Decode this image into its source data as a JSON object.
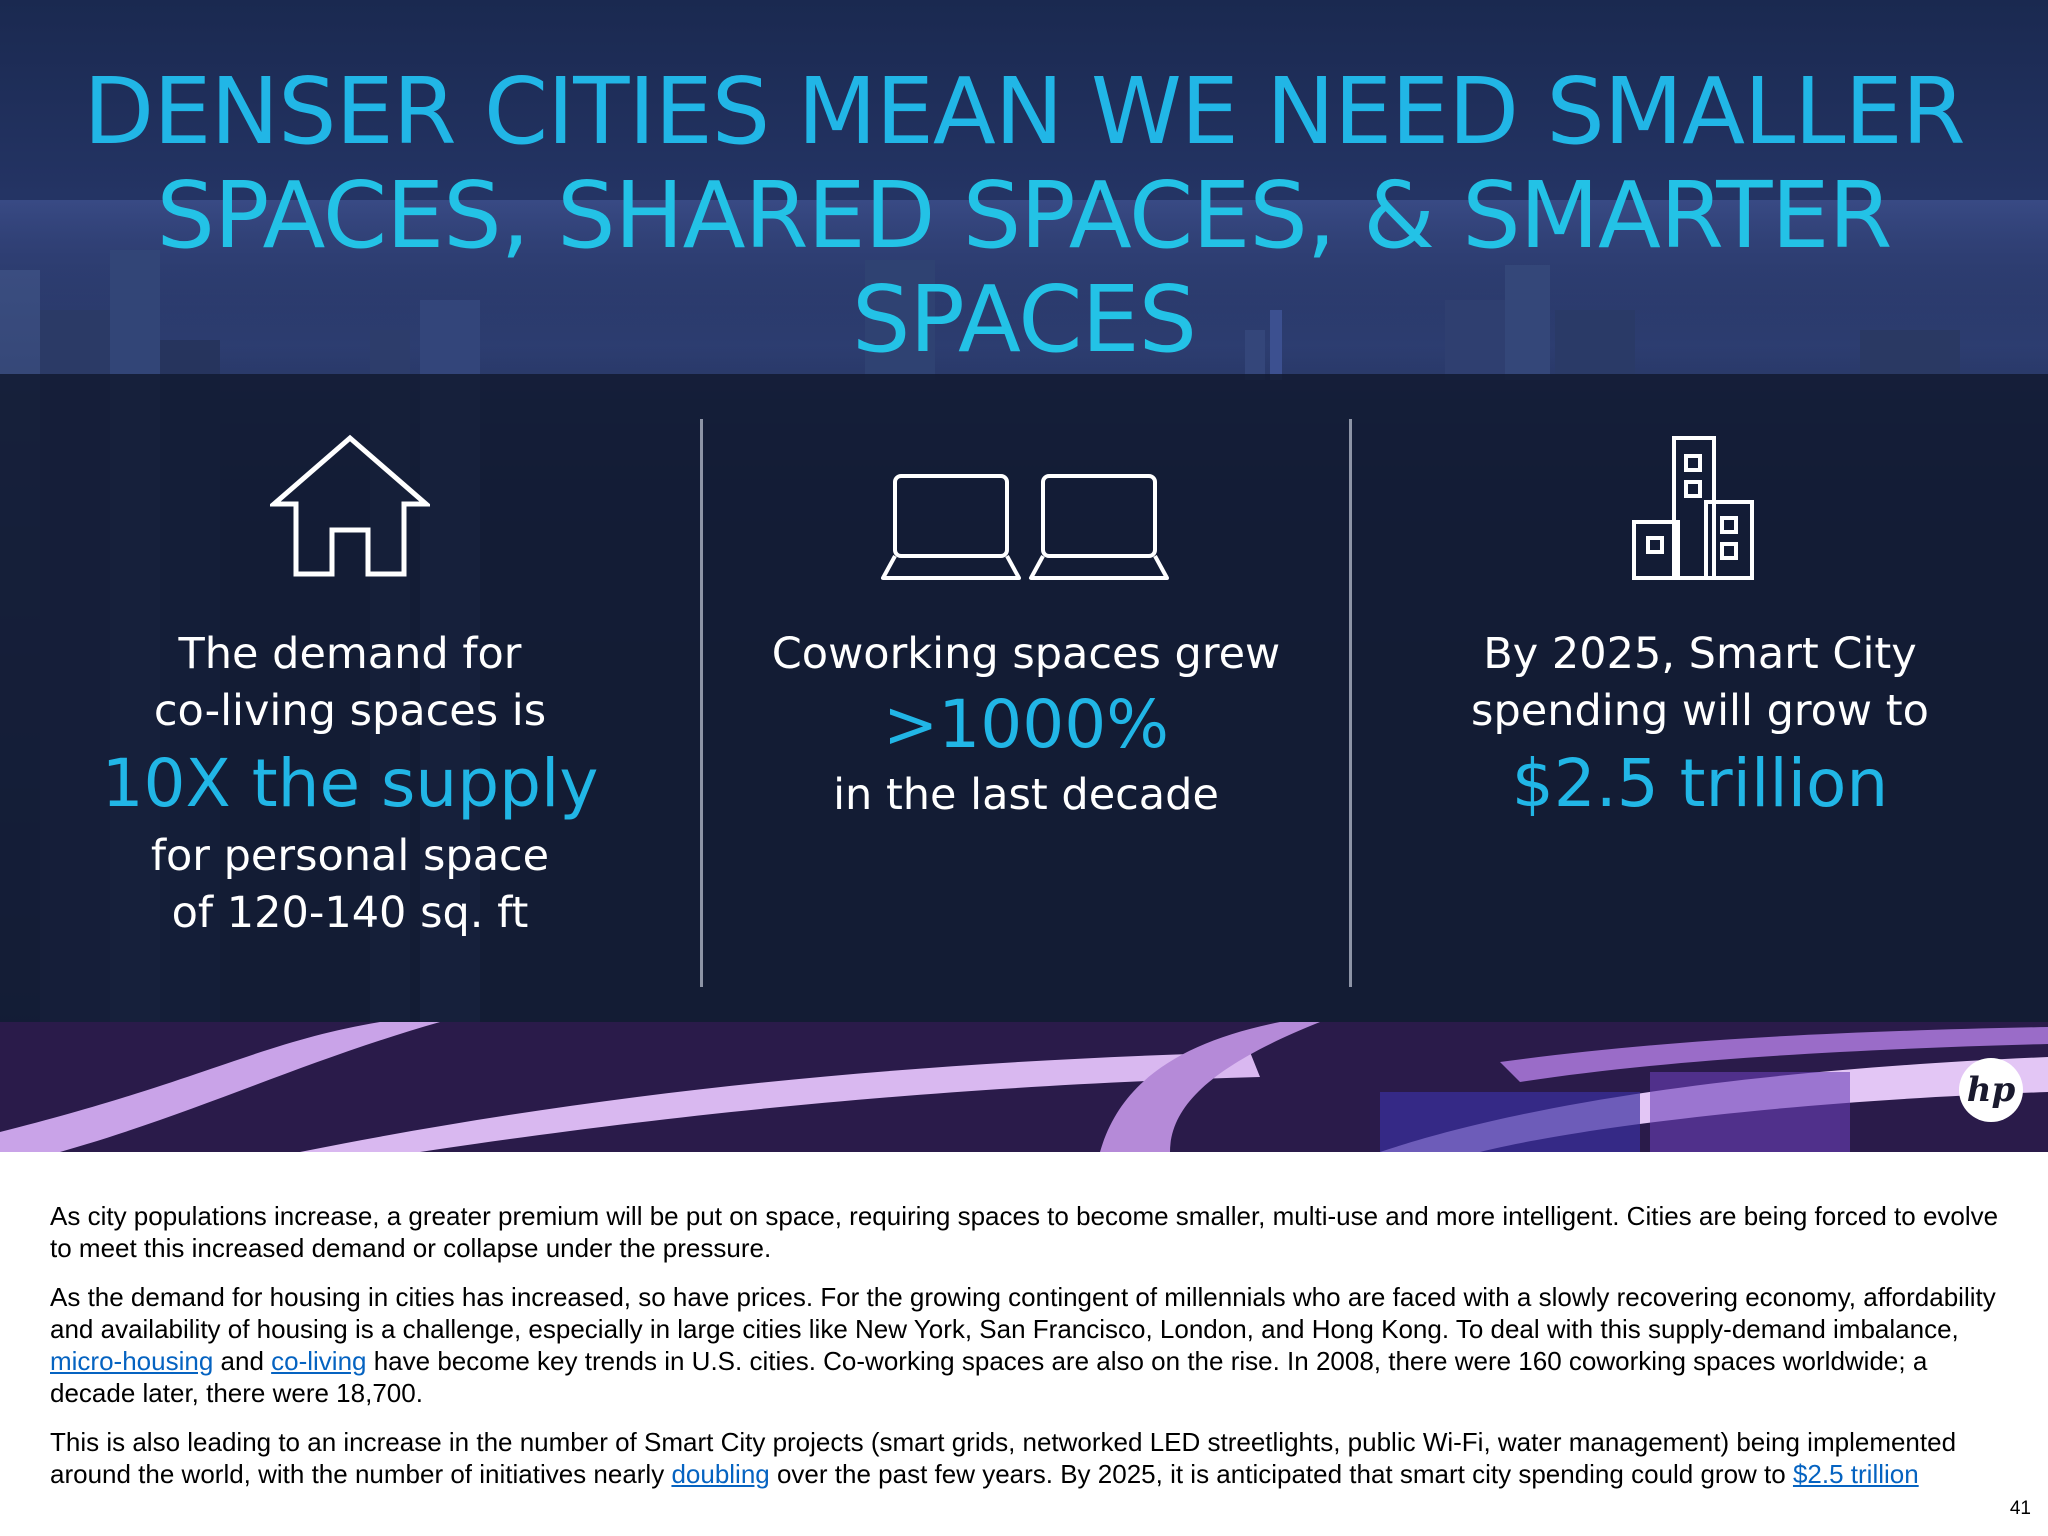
{
  "slide": {
    "title_line1": "DENSER CITIES MEAN WE NEED SMALLER",
    "title_line2": "SPACES, SHARED SPACES, & SMARTER SPACES",
    "logo": "hp",
    "columns": [
      {
        "icon": "house-icon",
        "line1": "The demand for",
        "line2": "co-living spaces is",
        "highlight": "10X the supply",
        "line3": "for personal space",
        "line4": "of 120-140 sq. ft"
      },
      {
        "icon": "two-laptops-icon",
        "line1": "Coworking spaces grew",
        "highlight": ">1000%",
        "line2": "in the last decade"
      },
      {
        "icon": "buildings-icon",
        "line1": "By 2025, Smart City",
        "line2": "spending will grow to",
        "highlight": "$2.5 trillion"
      }
    ]
  },
  "notes": {
    "p1": "As city populations increase, a greater premium will be put on space, requiring spaces to become smaller, multi-use and more intelligent. Cities are being forced to evolve to meet this increased demand or collapse under the pressure.",
    "p2_a": "As the demand for housing in cities has increased, so have prices. For the growing contingent of millennials who are faced with a slowly recovering economy, affordability and availability of housing is a challenge, especially in large cities like New York, San Francisco, London, and Hong Kong. To deal with this supply-demand imbalance, ",
    "p2_link1": "micro-housing",
    "p2_b": " and ",
    "p2_link2": "co-living",
    "p2_c": " have become key trends in U.S. cities. Co-working spaces are also on the rise. In 2008, there were 160 coworking spaces worldwide; a decade later, there were 18,700.",
    "p3_a": "This is also leading to an increase in the number of Smart City projects (smart grids, networked LED streetlights, public Wi-Fi, water management) being implemented around the world, with the number of initiatives nearly ",
    "p3_link1": "doubling",
    "p3_b": " over the past few years. By 2025, it is anticipated that smart city spending could grow to ",
    "p3_link2": "$2.5 trillion"
  },
  "page_number": "41",
  "colors": {
    "accent": "#21b6e6",
    "link": "#0563c1",
    "panel": "#131c34"
  }
}
